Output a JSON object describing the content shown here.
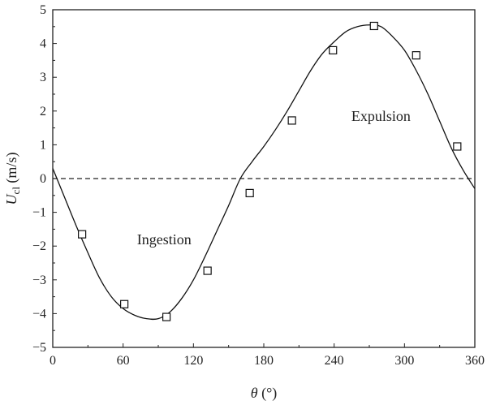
{
  "chart_data": {
    "type": "line",
    "xlabel_symbol": "θ",
    "xlabel_unit": " (°)",
    "ylabel_symbol": "U",
    "ylabel_subscript": "cl",
    "ylabel_unit": " (m/s)",
    "xlim": [
      0,
      360
    ],
    "ylim": [
      -5,
      5
    ],
    "x_ticks": [
      0,
      60,
      120,
      180,
      240,
      300,
      360
    ],
    "y_ticks": [
      -5,
      -4,
      -3,
      -2,
      -1,
      0,
      1,
      2,
      3,
      4,
      5
    ],
    "x_tick_labels": [
      "0",
      "60",
      "120",
      "180",
      "240",
      "300",
      "360"
    ],
    "y_tick_labels": [
      "−5",
      "−4",
      "−3",
      "−2",
      "−1",
      "0",
      "1",
      "2",
      "3",
      "4",
      "5"
    ],
    "grid": false,
    "reference_line": {
      "y": 0,
      "style": "dashed"
    },
    "series": [
      {
        "kind": "markers",
        "marker": "open-square",
        "x": [
          25,
          61,
          97,
          132,
          168,
          204,
          239,
          274,
          310,
          345
        ],
        "y": [
          -1.65,
          -3.72,
          -4.1,
          -2.73,
          -0.43,
          1.72,
          3.8,
          4.52,
          3.65,
          0.95
        ]
      },
      {
        "kind": "curve",
        "x": [
          0,
          10,
          20,
          30,
          40,
          50,
          60,
          70,
          80,
          90,
          100,
          110,
          120,
          130,
          140,
          150,
          160,
          170,
          180,
          190,
          200,
          210,
          220,
          230,
          240,
          250,
          260,
          270,
          280,
          290,
          300,
          310,
          320,
          330,
          340,
          350,
          360
        ],
        "y": [
          0.3,
          -0.55,
          -1.4,
          -2.2,
          -2.95,
          -3.5,
          -3.85,
          -4.05,
          -4.15,
          -4.15,
          -3.95,
          -3.55,
          -3.0,
          -2.3,
          -1.55,
          -0.8,
          0.0,
          0.5,
          0.95,
          1.45,
          2.0,
          2.6,
          3.2,
          3.7,
          4.05,
          4.35,
          4.5,
          4.55,
          4.5,
          4.2,
          3.8,
          3.2,
          2.5,
          1.7,
          0.9,
          0.25,
          -0.3
        ]
      }
    ],
    "annotations": [
      {
        "text": "Ingestion",
        "x": 95,
        "y": -1.8
      },
      {
        "text": "Expulsion",
        "x": 280,
        "y": 1.85
      }
    ]
  }
}
